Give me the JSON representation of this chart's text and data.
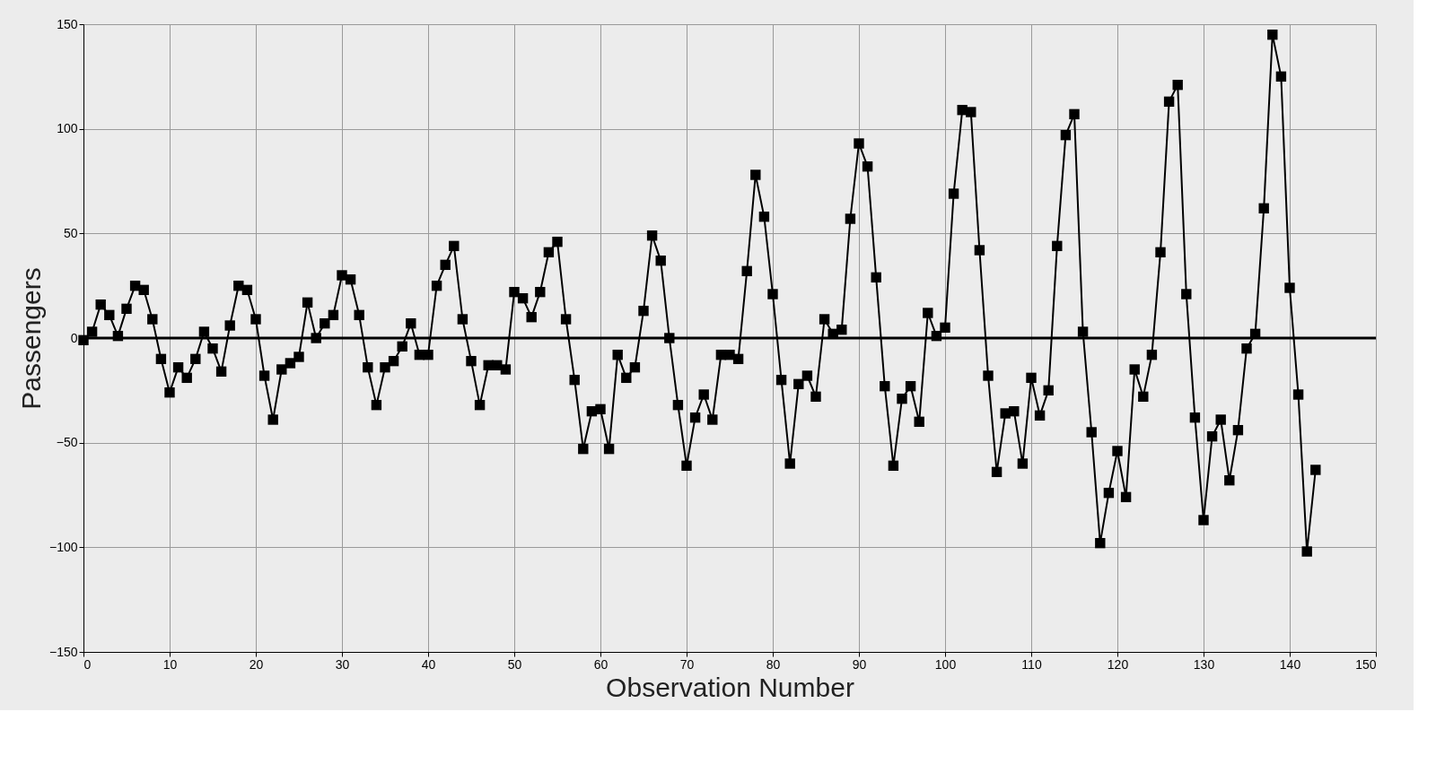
{
  "chart_data": {
    "type": "line",
    "xlabel": "Observation Number",
    "ylabel": "Passengers",
    "x": [
      0,
      1,
      2,
      3,
      4,
      5,
      6,
      7,
      8,
      9,
      10,
      11,
      12,
      13,
      14,
      15,
      16,
      17,
      18,
      19,
      20,
      21,
      22,
      23,
      24,
      25,
      26,
      27,
      28,
      29,
      30,
      31,
      32,
      33,
      34,
      35,
      36,
      37,
      38,
      39,
      40,
      41,
      42,
      43,
      44,
      45,
      46,
      47,
      48,
      49,
      50,
      51,
      52,
      53,
      54,
      55,
      56,
      57,
      58,
      59,
      60,
      61,
      62,
      63,
      64,
      65,
      66,
      67,
      68,
      69,
      70,
      71,
      72,
      73,
      74,
      75,
      76,
      77,
      78,
      79,
      80,
      81,
      82,
      83,
      84,
      85,
      86,
      87,
      88,
      89,
      90,
      91,
      92,
      93,
      94,
      95,
      96,
      97,
      98,
      99,
      100,
      101,
      102,
      103,
      104,
      105,
      106,
      107,
      108,
      109,
      110,
      111,
      112,
      113,
      114,
      115,
      116,
      117,
      118,
      119,
      120,
      121,
      122,
      123,
      124,
      125,
      126,
      127,
      128,
      129,
      130,
      131,
      132,
      133,
      134,
      135,
      136,
      137,
      138,
      139,
      140,
      141,
      142,
      143
    ],
    "series": [
      {
        "color": "#000000",
        "values": [
          -1,
          3,
          16,
          11,
          1,
          14,
          25,
          23,
          9,
          -10,
          -26,
          -14,
          -19,
          -10,
          3,
          -5,
          -16,
          6,
          25,
          23,
          9,
          -18,
          -39,
          -15,
          -12,
          -9,
          17,
          0,
          7,
          11,
          30,
          28,
          11,
          -14,
          -32,
          -14,
          -11,
          -4,
          7,
          -8,
          -8,
          25,
          35,
          44,
          9,
          -11,
          -32,
          -13,
          -13,
          -15,
          22,
          19,
          10,
          22,
          41,
          46,
          9,
          -20,
          -53,
          -35,
          -34,
          -53,
          -8,
          -19,
          -14,
          13,
          49,
          37,
          0,
          -32,
          -61,
          -38,
          -27,
          -39,
          -8,
          -8,
          -10,
          32,
          78,
          58,
          21,
          -20,
          -60,
          -22,
          -18,
          -28,
          9,
          2,
          4,
          57,
          93,
          82,
          29,
          -23,
          -61,
          -29,
          -23,
          -40,
          12,
          1,
          5,
          69,
          109,
          108,
          42,
          -18,
          -64,
          -36,
          -35,
          -60,
          -19,
          -37,
          -25,
          44,
          97,
          107,
          3,
          -45,
          -98,
          -74,
          -54,
          -76,
          -15,
          -28,
          -8,
          41,
          113,
          121,
          21,
          -38,
          -87,
          -47,
          -39,
          -68,
          -44,
          -5,
          2,
          62,
          145,
          125,
          24,
          -27,
          -102,
          -63
        ]
      }
    ],
    "xlim": [
      0,
      150
    ],
    "xticks": [
      0,
      10,
      20,
      30,
      40,
      50,
      60,
      70,
      80,
      90,
      100,
      110,
      120,
      130,
      140,
      150
    ],
    "ylim": [
      -150,
      150
    ],
    "yticks": [
      -150,
      -100,
      -50,
      0,
      50,
      100,
      150
    ],
    "ref_lines": [
      {
        "axis": "y",
        "value": 0,
        "color": "#000000"
      }
    ],
    "grid": true,
    "marker": "square",
    "line_style": "solid"
  }
}
